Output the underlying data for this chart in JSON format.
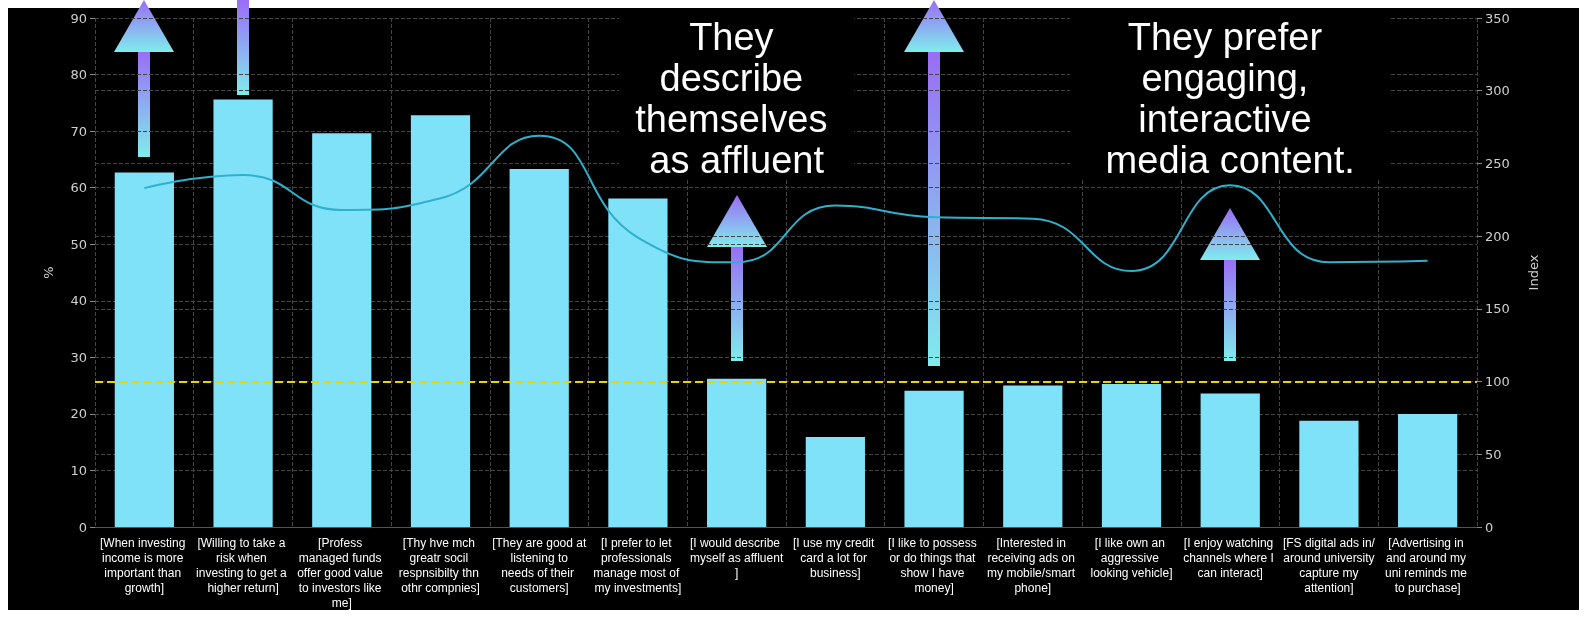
{
  "chart_data": {
    "type": "bar",
    "ylabel": "%",
    "y2label": "Index",
    "categories": [
      "[When investing income is more important than growth]",
      "[Willing to take a risk when investing to get a higher return]",
      "[Profess managed funds offer good value to investors like me]",
      "[Thy hve mch greatr socil respnsibilty thn othr compnies]",
      "[They are good at listening to needs of their customers]",
      "[I prefer to let professionals manage most of my investments]",
      "[I would describe myself as affluent]",
      "[I use my credit card a lot for business]",
      "[I like to possess or do things that show I have money]",
      "[Interested in receiving ads on my mobile/smart phone]",
      "[I like own an aggressive looking vehicle]",
      "[I enjoy watching channels where I can interact]",
      "[FS digital ads in/around university capture my attention]",
      "[Advertising in and around my uni reminds me to purchase]"
    ],
    "series": [
      {
        "color": "#80e2f8",
        "values": [
          62.7,
          75.6,
          69.6,
          72.8,
          63.3,
          58.1,
          26.2,
          15.9,
          24.1,
          25.0,
          25.3,
          23.6,
          18.8,
          20.0
        ]
      },
      {
        "type": "line",
        "axis": "y2",
        "color": "#2fb0cc",
        "values": [
          233,
          242,
          218,
          226,
          269,
          199,
          182,
          221,
          213,
          212,
          176,
          235,
          182,
          183
        ]
      }
    ],
    "ylim": [
      0,
      90
    ],
    "yticks": [
      0,
      10,
      20,
      30,
      40,
      50,
      60,
      70,
      80,
      90
    ],
    "y2lim": [
      0,
      350
    ],
    "y2ticks": [
      0,
      50,
      100,
      150,
      200,
      250,
      300,
      350
    ],
    "grid": true,
    "marker": "none",
    "line_style": "solid",
    "ref_lines": [
      {
        "axis": "y2",
        "value": 100,
        "color": "#f5d000",
        "line_style": "dashed"
      }
    ],
    "annotations": [
      "They describe themselves as affluent",
      "They prefer engaging, interactive media content."
    ]
  }
}
